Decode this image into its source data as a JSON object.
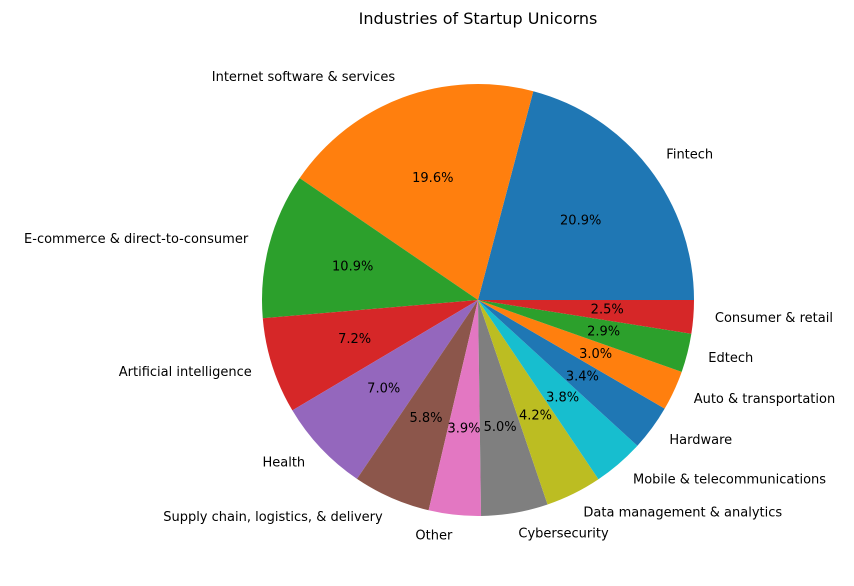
{
  "chart_data": {
    "type": "pie",
    "title": "Industries of Startup Unicorns",
    "start_angle_deg": 0,
    "direction": "counterclockwise",
    "slices": [
      {
        "label": "Fintech",
        "value": 20.9,
        "pct_label": "20.9%",
        "color": "#1f77b4"
      },
      {
        "label": "Internet software & services",
        "value": 19.6,
        "pct_label": "19.6%",
        "color": "#ff7f0e"
      },
      {
        "label": "E-commerce & direct-to-consumer",
        "value": 10.9,
        "pct_label": "10.9%",
        "color": "#2ca02c"
      },
      {
        "label": "Artificial intelligence",
        "value": 7.2,
        "pct_label": "7.2%",
        "color": "#d62728"
      },
      {
        "label": "Health",
        "value": 7.0,
        "pct_label": "7.0%",
        "color": "#9467bd"
      },
      {
        "label": "Supply chain, logistics, & delivery",
        "value": 5.8,
        "pct_label": "5.8%",
        "color": "#8c564b"
      },
      {
        "label": "Other",
        "value": 3.9,
        "pct_label": "3.9%",
        "color": "#e377c2"
      },
      {
        "label": "Cybersecurity",
        "value": 5.0,
        "pct_label": "5.0%",
        "color": "#7f7f7f"
      },
      {
        "label": "Data management & analytics",
        "value": 4.2,
        "pct_label": "4.2%",
        "color": "#bcbd22"
      },
      {
        "label": "Mobile & telecommunications",
        "value": 3.8,
        "pct_label": "3.8%",
        "color": "#17becf"
      },
      {
        "label": "Hardware",
        "value": 3.4,
        "pct_label": "3.4%",
        "color": "#1f77b4"
      },
      {
        "label": "Auto & transportation",
        "value": 3.0,
        "pct_label": "3.0%",
        "color": "#ff7f0e"
      },
      {
        "label": "Edtech",
        "value": 2.9,
        "pct_label": "2.9%",
        "color": "#2ca02c"
      },
      {
        "label": "Consumer & retail",
        "value": 2.5,
        "pct_label": "2.5%",
        "color": "#d62728"
      }
    ]
  }
}
